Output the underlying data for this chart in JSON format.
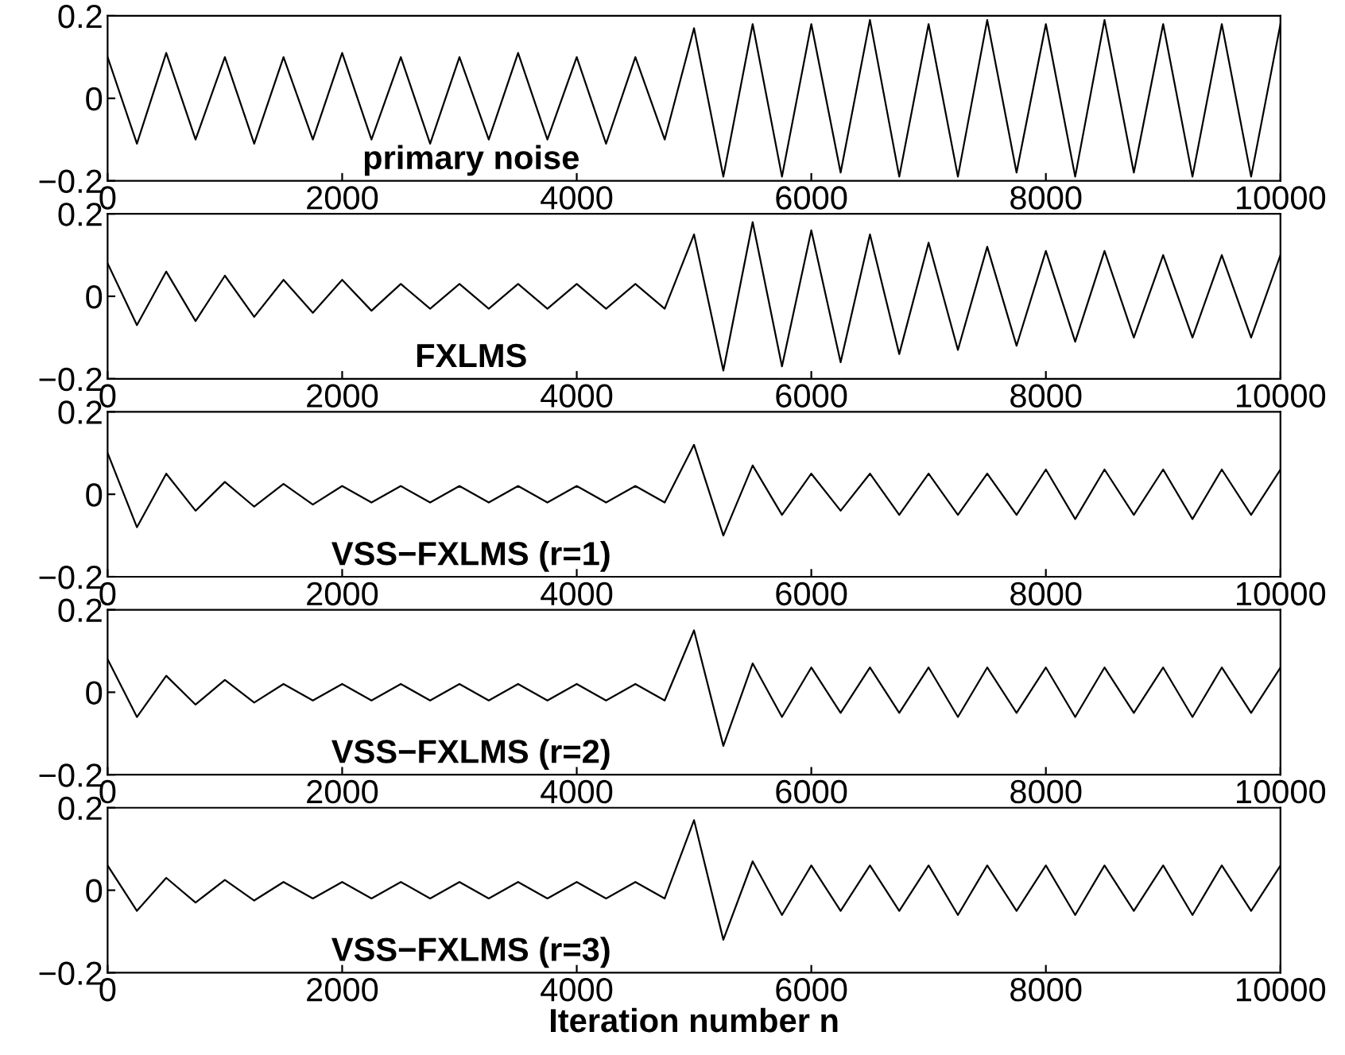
{
  "chart_data": [
    {
      "type": "line",
      "xlim": [
        0,
        10000
      ],
      "ylim": [
        -0.2,
        0.2
      ],
      "xticks": [
        0,
        2000,
        4000,
        6000,
        8000,
        10000
      ],
      "yticks": [
        -0.2,
        0,
        0.2
      ],
      "annotations": [
        "primary noise"
      ],
      "x": [
        0,
        250,
        500,
        750,
        1000,
        1250,
        1500,
        1750,
        2000,
        2250,
        2500,
        2750,
        3000,
        3250,
        3500,
        3750,
        4000,
        4250,
        4500,
        4750,
        5000,
        5250,
        5500,
        5750,
        6000,
        6250,
        6500,
        6750,
        7000,
        7250,
        7500,
        7750,
        8000,
        8250,
        8500,
        8750,
        9000,
        9250,
        9500,
        9750,
        10000
      ],
      "series": [
        {
          "color": "#000000",
          "values": [
            0.1,
            -0.11,
            0.11,
            -0.1,
            0.1,
            -0.11,
            0.1,
            -0.1,
            0.11,
            -0.1,
            0.1,
            -0.11,
            0.1,
            -0.1,
            0.11,
            -0.1,
            0.1,
            -0.11,
            0.1,
            -0.1,
            0.17,
            -0.19,
            0.18,
            -0.19,
            0.18,
            -0.18,
            0.19,
            -0.19,
            0.18,
            -0.19,
            0.19,
            -0.18,
            0.18,
            -0.19,
            0.19,
            -0.18,
            0.18,
            -0.19,
            0.18,
            -0.19,
            0.18
          ]
        }
      ]
    },
    {
      "type": "line",
      "xlim": [
        0,
        10000
      ],
      "ylim": [
        -0.2,
        0.2
      ],
      "xticks": [
        0,
        2000,
        4000,
        6000,
        8000,
        10000
      ],
      "yticks": [
        -0.2,
        0,
        0.2
      ],
      "annotations": [
        "FXLMS"
      ],
      "x": [
        0,
        250,
        500,
        750,
        1000,
        1250,
        1500,
        1750,
        2000,
        2250,
        2500,
        2750,
        3000,
        3250,
        3500,
        3750,
        4000,
        4250,
        4500,
        4750,
        5000,
        5250,
        5500,
        5750,
        6000,
        6250,
        6500,
        6750,
        7000,
        7250,
        7500,
        7750,
        8000,
        8250,
        8500,
        8750,
        9000,
        9250,
        9500,
        9750,
        10000
      ],
      "series": [
        {
          "color": "#000000",
          "values": [
            0.08,
            -0.07,
            0.06,
            -0.06,
            0.05,
            -0.05,
            0.04,
            -0.04,
            0.04,
            -0.035,
            0.03,
            -0.03,
            0.03,
            -0.03,
            0.03,
            -0.03,
            0.03,
            -0.03,
            0.03,
            -0.03,
            0.15,
            -0.18,
            0.18,
            -0.17,
            0.16,
            -0.16,
            0.15,
            -0.14,
            0.13,
            -0.13,
            0.12,
            -0.12,
            0.11,
            -0.11,
            0.11,
            -0.1,
            0.1,
            -0.1,
            0.1,
            -0.1,
            0.1
          ]
        }
      ]
    },
    {
      "type": "line",
      "xlim": [
        0,
        10000
      ],
      "ylim": [
        -0.2,
        0.2
      ],
      "xticks": [
        0,
        2000,
        4000,
        6000,
        8000,
        10000
      ],
      "yticks": [
        -0.2,
        0,
        0.2
      ],
      "annotations": [
        "VSS−FXLMS (r=1)"
      ],
      "x": [
        0,
        250,
        500,
        750,
        1000,
        1250,
        1500,
        1750,
        2000,
        2250,
        2500,
        2750,
        3000,
        3250,
        3500,
        3750,
        4000,
        4250,
        4500,
        4750,
        5000,
        5250,
        5500,
        5750,
        6000,
        6250,
        6500,
        6750,
        7000,
        7250,
        7500,
        7750,
        8000,
        8250,
        8500,
        8750,
        9000,
        9250,
        9500,
        9750,
        10000
      ],
      "series": [
        {
          "color": "#000000",
          "values": [
            0.1,
            -0.08,
            0.05,
            -0.04,
            0.03,
            -0.03,
            0.025,
            -0.025,
            0.02,
            -0.02,
            0.02,
            -0.02,
            0.02,
            -0.02,
            0.02,
            -0.02,
            0.02,
            -0.02,
            0.02,
            -0.02,
            0.12,
            -0.1,
            0.07,
            -0.05,
            0.05,
            -0.04,
            0.05,
            -0.05,
            0.05,
            -0.05,
            0.05,
            -0.05,
            0.06,
            -0.06,
            0.06,
            -0.05,
            0.06,
            -0.06,
            0.06,
            -0.05,
            0.06
          ]
        }
      ]
    },
    {
      "type": "line",
      "xlim": [
        0,
        10000
      ],
      "ylim": [
        -0.2,
        0.2
      ],
      "xticks": [
        0,
        2000,
        4000,
        6000,
        8000,
        10000
      ],
      "yticks": [
        -0.2,
        0,
        0.2
      ],
      "annotations": [
        "VSS−FXLMS (r=2)"
      ],
      "x": [
        0,
        250,
        500,
        750,
        1000,
        1250,
        1500,
        1750,
        2000,
        2250,
        2500,
        2750,
        3000,
        3250,
        3500,
        3750,
        4000,
        4250,
        4500,
        4750,
        5000,
        5250,
        5500,
        5750,
        6000,
        6250,
        6500,
        6750,
        7000,
        7250,
        7500,
        7750,
        8000,
        8250,
        8500,
        8750,
        9000,
        9250,
        9500,
        9750,
        10000
      ],
      "series": [
        {
          "color": "#000000",
          "values": [
            0.08,
            -0.06,
            0.04,
            -0.03,
            0.03,
            -0.025,
            0.02,
            -0.02,
            0.02,
            -0.02,
            0.02,
            -0.02,
            0.02,
            -0.02,
            0.02,
            -0.02,
            0.02,
            -0.02,
            0.02,
            -0.02,
            0.15,
            -0.13,
            0.07,
            -0.06,
            0.06,
            -0.05,
            0.06,
            -0.05,
            0.06,
            -0.06,
            0.06,
            -0.05,
            0.06,
            -0.06,
            0.06,
            -0.05,
            0.06,
            -0.06,
            0.06,
            -0.05,
            0.06
          ]
        }
      ]
    },
    {
      "type": "line",
      "xlim": [
        0,
        10000
      ],
      "ylim": [
        -0.2,
        0.2
      ],
      "xticks": [
        0,
        2000,
        4000,
        6000,
        8000,
        10000
      ],
      "yticks": [
        -0.2,
        0,
        0.2
      ],
      "xlabel": "Iteration number n",
      "annotations": [
        "VSS−FXLMS (r=3)"
      ],
      "x": [
        0,
        250,
        500,
        750,
        1000,
        1250,
        1500,
        1750,
        2000,
        2250,
        2500,
        2750,
        3000,
        3250,
        3500,
        3750,
        4000,
        4250,
        4500,
        4750,
        5000,
        5250,
        5500,
        5750,
        6000,
        6250,
        6500,
        6750,
        7000,
        7250,
        7500,
        7750,
        8000,
        8250,
        8500,
        8750,
        9000,
        9250,
        9500,
        9750,
        10000
      ],
      "series": [
        {
          "color": "#000000",
          "values": [
            0.06,
            -0.05,
            0.03,
            -0.03,
            0.025,
            -0.025,
            0.02,
            -0.02,
            0.02,
            -0.02,
            0.02,
            -0.02,
            0.02,
            -0.02,
            0.02,
            -0.02,
            0.02,
            -0.02,
            0.02,
            -0.02,
            0.17,
            -0.12,
            0.07,
            -0.06,
            0.06,
            -0.05,
            0.06,
            -0.05,
            0.06,
            -0.06,
            0.06,
            -0.05,
            0.06,
            -0.06,
            0.06,
            -0.05,
            0.06,
            -0.06,
            0.06,
            -0.05,
            0.06
          ]
        }
      ]
    }
  ]
}
